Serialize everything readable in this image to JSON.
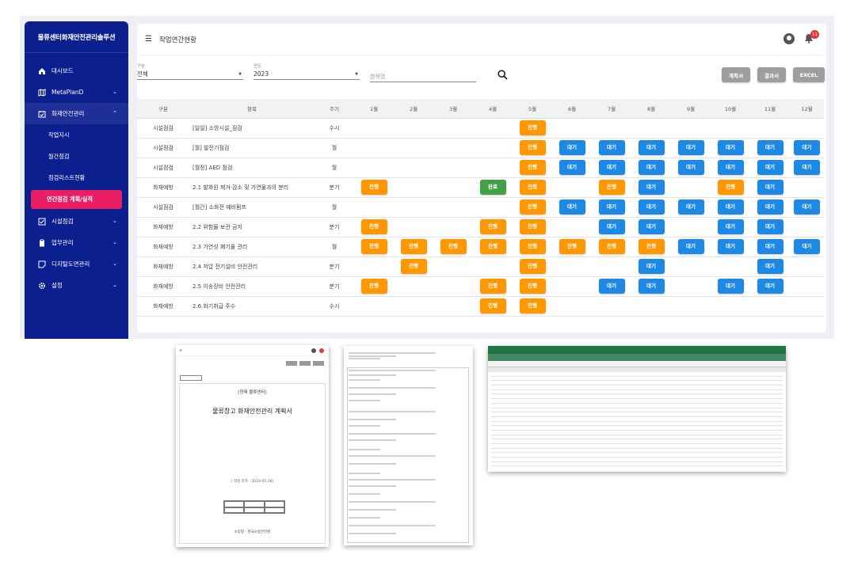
{
  "sidebar": {
    "brand": "물류센터화재안전관리솔루션",
    "items": [
      {
        "label": "대시보드"
      },
      {
        "label": "MetaPlanD"
      },
      {
        "label": "화재안전관리"
      },
      {
        "label": "시설점검"
      },
      {
        "label": "업무관리"
      },
      {
        "label": "디지털도면관리"
      },
      {
        "label": "설정"
      }
    ],
    "subitems": [
      {
        "label": "작업지시"
      },
      {
        "label": "월간점검"
      },
      {
        "label": "점검리스트현황"
      },
      {
        "label": "연간점검 계획/실적"
      }
    ]
  },
  "header": {
    "title": "작업연간현황",
    "notification_count": "11"
  },
  "filters": {
    "category_label": "구분",
    "category_value": "전체",
    "year_label": "연도",
    "year_value": "2023",
    "search_placeholder": "항목명"
  },
  "buttons": {
    "plan": "계획서",
    "result": "결과서",
    "excel": "EXCEL"
  },
  "table": {
    "headers": [
      "구분",
      "항목",
      "주기",
      "1월",
      "2월",
      "3월",
      "4월",
      "5월",
      "6월",
      "7월",
      "8월",
      "9월",
      "10월",
      "11월",
      "12월"
    ],
    "rows": [
      {
        "cat": "시설점검",
        "item": "[일일] 소방시설_점검",
        "cycle": "수시",
        "m": [
          "",
          "",
          "",
          "",
          "진행",
          "",
          "",
          "",
          "",
          "",
          "",
          ""
        ]
      },
      {
        "cat": "시설점검",
        "item": "[월] 발전기점검",
        "cycle": "월",
        "m": [
          "",
          "",
          "",
          "",
          "진행",
          "대기",
          "대기",
          "대기",
          "대기",
          "대기",
          "대기",
          "대기"
        ]
      },
      {
        "cat": "시설점검",
        "item": "[월정] AED 점검",
        "cycle": "월",
        "m": [
          "",
          "",
          "",
          "",
          "진행",
          "대기",
          "대기",
          "대기",
          "대기",
          "대기",
          "대기",
          "대기"
        ]
      },
      {
        "cat": "화재예방",
        "item": "2.1 발화원 제거·감소 및 가연물과의 분리",
        "cycle": "분기",
        "m": [
          "진행",
          "",
          "",
          "완료",
          "진행",
          "",
          "진행",
          "대기",
          "",
          "진행",
          "대기",
          ""
        ]
      },
      {
        "cat": "시설점검",
        "item": "[월간] 소화전 예비펌프",
        "cycle": "월",
        "m": [
          "",
          "",
          "",
          "",
          "진행",
          "대기",
          "대기",
          "대기",
          "대기",
          "대기",
          "대기",
          "대기"
        ]
      },
      {
        "cat": "화재예방",
        "item": "2.2 위험물 보관 금지",
        "cycle": "분기",
        "m": [
          "진행",
          "",
          "",
          "진행",
          "진행",
          "",
          "대기",
          "대기",
          "",
          "대기",
          "대기",
          ""
        ]
      },
      {
        "cat": "화재예방",
        "item": "2.3 가연성 폐기물 관리",
        "cycle": "월",
        "m": [
          "진행",
          "진행",
          "진행",
          "진행",
          "진행",
          "진행",
          "진행",
          "진행",
          "대기",
          "대기",
          "대기",
          "대기"
        ]
      },
      {
        "cat": "화재예방",
        "item": "2.4 저압 전기설비 안전관리",
        "cycle": "분기",
        "m": [
          "",
          "진행",
          "",
          "",
          "진행",
          "",
          "",
          "대기",
          "",
          "",
          "대기",
          ""
        ]
      },
      {
        "cat": "화재예방",
        "item": "2.5 이송장비 안전관리",
        "cycle": "분기",
        "m": [
          "진행",
          "",
          "",
          "진행",
          "진행",
          "",
          "대기",
          "대기",
          "",
          "대기",
          "대기",
          ""
        ]
      },
      {
        "cat": "화재예방",
        "item": "2.6 화기취급 주수",
        "cycle": "수시",
        "m": [
          "",
          "",
          "",
          "진행",
          "진행",
          "",
          "",
          "",
          "",
          "",
          "",
          ""
        ]
      }
    ]
  },
  "status_colors": {
    "진행": "#ff9800",
    "대기": "#1e88e5",
    "완료": "#43a047"
  },
  "thumbs": {
    "doc_org": "[양재 물류센터]",
    "doc_title": "물류창고 화재안전관리 계획서",
    "doc_date": "[ 작성 일자 : 2023-05-28]",
    "doc_footer": "소방청 · 한국소방안전원"
  }
}
